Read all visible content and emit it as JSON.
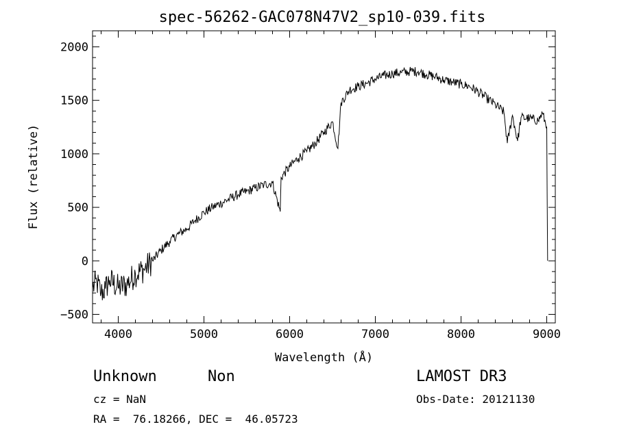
{
  "chart_data": {
    "type": "line",
    "title": "spec-56262-GAC078N47V2_sp10-039.fits",
    "xlabel": "Wavelength (Å)",
    "ylabel": "Flux (relative)",
    "xlim": [
      3700,
      9100
    ],
    "ylim": [
      -580,
      2150
    ],
    "x_ticks": [
      4000,
      5000,
      6000,
      7000,
      8000,
      9000
    ],
    "y_ticks": [
      -500,
      0,
      500,
      1000,
      1500,
      2000
    ],
    "x_tick_labels": [
      "4000",
      "5000",
      "6000",
      "7000",
      "8000",
      "9000"
    ],
    "y_tick_labels": [
      "−500",
      "0",
      "500",
      "1000",
      "1500",
      "2000"
    ],
    "grid": false,
    "series": [
      {
        "x": [
          3700,
          3750,
          3800,
          3850,
          3900,
          4000,
          4100,
          4200,
          4300,
          4400,
          4500,
          4600,
          4700,
          4800,
          4900,
          5000,
          5100,
          5200,
          5300,
          5400,
          5500,
          5600,
          5700,
          5800,
          5890,
          5900,
          6000,
          6100,
          6200,
          6300,
          6400,
          6500,
          6563,
          6600,
          6700,
          6800,
          6900,
          7000,
          7100,
          7200,
          7300,
          7400,
          7500,
          7600,
          7700,
          7800,
          7900,
          8000,
          8100,
          8200,
          8300,
          8400,
          8500,
          8540,
          8600,
          8660,
          8700,
          8800,
          8900,
          8950,
          9000,
          9010
        ],
        "y": [
          -250,
          -200,
          -300,
          -260,
          -180,
          -250,
          -220,
          -120,
          -80,
          0,
          100,
          180,
          250,
          300,
          380,
          450,
          500,
          540,
          580,
          620,
          650,
          680,
          710,
          730,
          460,
          780,
          880,
          960,
          1020,
          1100,
          1200,
          1300,
          1050,
          1480,
          1600,
          1630,
          1660,
          1700,
          1730,
          1750,
          1760,
          1770,
          1770,
          1740,
          1720,
          1690,
          1670,
          1650,
          1630,
          1580,
          1520,
          1460,
          1390,
          1100,
          1360,
          1120,
          1340,
          1330,
          1310,
          1380,
          1250,
          0
        ]
      }
    ],
    "annotations": {
      "object_class": "Unknown",
      "subclass": "Non",
      "survey": "LAMOST DR3",
      "cz": "cz = NaN",
      "obs_date": "Obs-Date: 20121130",
      "coords": "RA =  76.18266, DEC =  46.05723"
    }
  }
}
